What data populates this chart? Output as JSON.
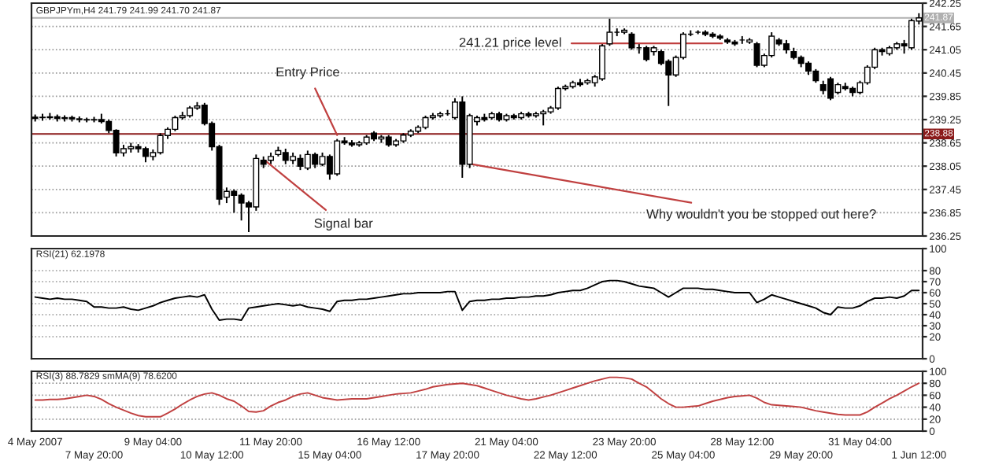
{
  "chart_data": [
    {
      "type": "candlestick",
      "title": "GBPJPYm,H4 241.79 241.99 241.70 241.87",
      "categories": [
        null,
        null,
        null,
        null,
        null,
        null,
        null,
        null,
        null,
        null,
        null,
        null,
        null,
        null,
        null,
        null,
        null,
        null,
        null,
        null,
        null,
        null,
        null,
        null,
        null,
        null,
        null,
        null,
        null,
        null,
        null,
        null,
        null,
        null,
        null,
        null,
        null,
        null,
        null,
        null,
        null,
        null,
        null,
        null,
        null,
        null,
        null,
        null,
        null,
        null,
        null,
        null,
        null,
        null,
        null,
        null,
        null,
        null,
        null,
        null,
        null,
        null,
        null,
        null,
        null,
        null,
        null,
        null,
        null,
        null,
        null,
        null,
        null,
        null,
        null,
        null,
        null,
        null,
        null,
        null,
        null,
        null,
        null,
        null,
        null,
        null,
        null,
        null,
        null,
        null,
        null,
        null,
        null,
        null,
        null,
        null,
        null,
        null,
        null,
        null,
        null,
        null,
        null,
        null,
        null,
        null,
        null,
        null,
        null,
        null,
        null,
        null,
        null,
        null,
        null,
        null,
        null,
        null,
        null,
        null,
        null
      ],
      "ohlc": [
        [
          239.28,
          239.38,
          239.2,
          239.31
        ],
        [
          239.31,
          239.4,
          239.22,
          239.3
        ],
        [
          239.3,
          239.42,
          239.25,
          239.32
        ],
        [
          239.32,
          239.38,
          239.2,
          239.28
        ],
        [
          239.28,
          239.36,
          239.2,
          239.3
        ],
        [
          239.3,
          239.35,
          239.2,
          239.27
        ],
        [
          239.27,
          239.33,
          239.18,
          239.25
        ],
        [
          239.25,
          239.3,
          239.18,
          239.24
        ],
        [
          239.24,
          239.32,
          239.18,
          239.25
        ],
        [
          239.25,
          239.4,
          239.15,
          239.2
        ],
        [
          239.2,
          239.25,
          238.9,
          238.97
        ],
        [
          238.97,
          239.0,
          238.3,
          238.39
        ],
        [
          238.39,
          238.6,
          238.3,
          238.5
        ],
        [
          238.5,
          238.65,
          238.4,
          238.55
        ],
        [
          238.55,
          238.62,
          238.4,
          238.5
        ],
        [
          238.5,
          238.55,
          238.15,
          238.3
        ],
        [
          238.3,
          238.48,
          238.2,
          238.4
        ],
        [
          238.4,
          238.9,
          238.35,
          238.84
        ],
        [
          238.84,
          239.05,
          238.75,
          239.0
        ],
        [
          239.0,
          239.35,
          238.95,
          239.3
        ],
        [
          239.3,
          239.45,
          239.25,
          239.35
        ],
        [
          239.35,
          239.6,
          239.3,
          239.55
        ],
        [
          239.55,
          239.7,
          239.5,
          239.6
        ],
        [
          239.62,
          239.68,
          239.1,
          239.15
        ],
        [
          239.15,
          239.2,
          238.45,
          238.55
        ],
        [
          238.55,
          238.6,
          237.05,
          237.2
        ],
        [
          237.25,
          237.5,
          237.1,
          237.4
        ],
        [
          237.4,
          237.45,
          236.85,
          237.3
        ],
        [
          237.3,
          237.35,
          236.65,
          237.1
        ],
        [
          237.1,
          237.15,
          236.35,
          237.0
        ],
        [
          237.0,
          238.35,
          236.9,
          238.25
        ],
        [
          238.2,
          238.3,
          238.0,
          238.1
        ],
        [
          238.2,
          238.4,
          238.1,
          238.3
        ],
        [
          238.35,
          238.55,
          238.3,
          238.45
        ],
        [
          238.4,
          238.5,
          238.1,
          238.2
        ],
        [
          238.2,
          238.4,
          238.1,
          238.3
        ],
        [
          238.25,
          238.35,
          237.95,
          238.05
        ],
        [
          238.0,
          238.45,
          237.95,
          238.35
        ],
        [
          238.35,
          238.4,
          238.0,
          238.1
        ],
        [
          238.1,
          238.4,
          238.05,
          238.3
        ],
        [
          238.3,
          238.35,
          237.7,
          237.85
        ],
        [
          237.85,
          238.75,
          237.8,
          238.7
        ],
        [
          238.7,
          238.8,
          238.6,
          238.65
        ],
        [
          238.65,
          238.72,
          238.55,
          238.6
        ],
        [
          238.6,
          238.7,
          238.55,
          238.65
        ],
        [
          238.65,
          238.85,
          238.6,
          238.8
        ],
        [
          238.9,
          238.95,
          238.7,
          238.75
        ],
        [
          238.75,
          238.85,
          238.65,
          238.8
        ],
        [
          238.8,
          238.85,
          238.55,
          238.6
        ],
        [
          238.6,
          238.75,
          238.55,
          238.7
        ],
        [
          238.7,
          238.9,
          238.65,
          238.85
        ],
        [
          238.85,
          239.0,
          238.8,
          238.95
        ],
        [
          238.95,
          239.1,
          238.9,
          239.05
        ],
        [
          239.05,
          239.35,
          239.0,
          239.3
        ],
        [
          239.3,
          239.42,
          239.25,
          239.35
        ],
        [
          239.35,
          239.45,
          239.3,
          239.4
        ],
        [
          239.4,
          239.5,
          239.35,
          239.4
        ],
        [
          239.3,
          239.8,
          239.25,
          239.7
        ],
        [
          239.7,
          239.85,
          237.75,
          238.1
        ],
        [
          238.1,
          239.4,
          238.0,
          239.35
        ],
        [
          239.2,
          239.35,
          239.1,
          239.3
        ],
        [
          239.3,
          239.4,
          239.2,
          239.25
        ],
        [
          239.3,
          239.45,
          239.25,
          239.4
        ],
        [
          239.4,
          239.45,
          239.2,
          239.25
        ],
        [
          239.25,
          239.4,
          239.2,
          239.35
        ],
        [
          239.35,
          239.4,
          239.25,
          239.3
        ],
        [
          239.3,
          239.45,
          239.25,
          239.4
        ],
        [
          239.4,
          239.45,
          239.3,
          239.35
        ],
        [
          239.35,
          239.45,
          239.3,
          239.4
        ],
        [
          239.4,
          239.5,
          239.1,
          239.45
        ],
        [
          239.45,
          239.6,
          239.4,
          239.55
        ],
        [
          239.55,
          240.1,
          239.5,
          240.05
        ],
        [
          240.05,
          240.15,
          240.0,
          240.1
        ],
        [
          240.1,
          240.25,
          240.05,
          240.2
        ],
        [
          240.2,
          240.3,
          240.1,
          240.15
        ],
        [
          240.2,
          240.3,
          240.15,
          240.25
        ],
        [
          240.2,
          240.4,
          240.1,
          240.35
        ],
        [
          240.3,
          241.2,
          240.25,
          241.15
        ],
        [
          241.2,
          241.85,
          241.15,
          241.5
        ],
        [
          241.5,
          241.6,
          241.4,
          241.5
        ],
        [
          241.5,
          241.6,
          241.45,
          241.55
        ],
        [
          241.45,
          241.5,
          241.05,
          241.1
        ],
        [
          241.1,
          241.2,
          240.95,
          241.1
        ],
        [
          241.1,
          241.15,
          240.75,
          240.8
        ],
        [
          241.0,
          241.15,
          240.9,
          241.1
        ],
        [
          241.0,
          241.05,
          240.65,
          240.7
        ],
        [
          240.75,
          240.8,
          239.6,
          240.4
        ],
        [
          240.4,
          240.9,
          240.35,
          240.85
        ],
        [
          240.85,
          241.5,
          240.8,
          241.45
        ],
        [
          241.45,
          241.55,
          241.4,
          241.45
        ],
        [
          241.5,
          241.55,
          241.45,
          241.5
        ],
        [
          241.5,
          241.55,
          241.4,
          241.45
        ],
        [
          241.45,
          241.5,
          241.35,
          241.4
        ],
        [
          241.4,
          241.45,
          241.3,
          241.35
        ],
        [
          241.3,
          241.35,
          241.2,
          241.25
        ],
        [
          241.25,
          241.3,
          241.15,
          241.2
        ],
        [
          241.3,
          241.4,
          241.2,
          241.3
        ],
        [
          241.25,
          241.35,
          241.2,
          241.3
        ],
        [
          241.2,
          241.25,
          240.6,
          240.65
        ],
        [
          240.65,
          240.95,
          240.6,
          240.9
        ],
        [
          240.9,
          241.5,
          240.85,
          241.4
        ],
        [
          241.3,
          241.35,
          241.15,
          241.2
        ],
        [
          241.2,
          241.3,
          240.95,
          241.05
        ],
        [
          241.0,
          241.1,
          240.8,
          240.85
        ],
        [
          240.85,
          240.9,
          240.6,
          240.7
        ],
        [
          240.7,
          240.75,
          240.4,
          240.5
        ],
        [
          240.5,
          240.55,
          240.2,
          240.25
        ],
        [
          240.15,
          240.25,
          239.9,
          240.0
        ],
        [
          240.3,
          240.35,
          239.75,
          239.8
        ],
        [
          239.95,
          240.2,
          239.9,
          240.15
        ],
        [
          240.1,
          240.2,
          240.0,
          240.05
        ],
        [
          240.05,
          240.1,
          239.85,
          239.95
        ],
        [
          239.95,
          240.25,
          239.9,
          240.2
        ],
        [
          240.2,
          240.65,
          240.15,
          240.6
        ],
        [
          240.6,
          241.1,
          240.55,
          241.05
        ],
        [
          241.05,
          241.1,
          240.9,
          241.0
        ],
        [
          240.95,
          241.15,
          240.9,
          241.1
        ],
        [
          241.1,
          241.25,
          241.05,
          241.2
        ],
        [
          241.2,
          241.3,
          240.95,
          241.15
        ],
        [
          241.1,
          241.85,
          241.05,
          241.8
        ],
        [
          241.79,
          241.99,
          241.7,
          241.87
        ]
      ],
      "ylim": [
        236.25,
        242.25
      ],
      "yticks": [
        236.25,
        236.85,
        237.45,
        238.05,
        238.65,
        239.25,
        239.85,
        240.45,
        241.05,
        241.65,
        242.25
      ],
      "ref_lines": [
        {
          "axis": "y",
          "value": 238.88,
          "label": "238.88",
          "color": "#8b1a1a"
        },
        {
          "axis": "y",
          "value": 241.87,
          "label": "241.87",
          "color": "#b0b0b0"
        }
      ],
      "annotations": [
        "Entry Price",
        "241.21 price level",
        "Signal bar",
        "Why wouldn't you be stopped out here?"
      ],
      "grid": true,
      "tick_labels": "y"
    },
    {
      "type": "line",
      "title": "RSI(21) 62.1978",
      "categories": [
        null,
        null,
        null,
        null,
        null,
        null,
        null,
        null,
        null,
        null,
        null,
        null,
        null,
        null,
        null,
        null,
        null,
        null,
        null,
        null,
        null,
        null,
        null,
        null,
        null,
        null,
        null,
        null,
        null,
        null,
        null,
        null,
        null,
        null,
        null,
        null,
        null,
        null,
        null,
        null,
        null,
        null,
        null,
        null,
        null,
        null,
        null,
        null,
        null,
        null,
        null,
        null,
        null,
        null,
        null,
        null,
        null,
        null,
        null,
        null,
        null,
        null,
        null,
        null,
        null,
        null,
        null,
        null,
        null,
        null,
        null,
        null,
        null,
        null,
        null,
        null,
        null,
        null,
        null,
        null,
        null,
        null,
        null,
        null,
        null,
        null,
        null,
        null,
        null,
        null,
        null,
        null,
        null,
        null,
        null,
        null,
        null,
        null,
        null,
        null,
        null,
        null,
        null,
        null,
        null,
        null,
        null,
        null,
        null,
        null,
        null,
        null,
        null,
        null,
        null,
        null,
        null,
        null,
        null,
        null,
        null
      ],
      "series": [
        {
          "color": "#000000",
          "values": [
            56,
            55,
            54,
            55,
            54,
            54,
            53,
            52,
            47,
            47,
            46,
            46,
            47,
            45,
            44,
            46,
            48,
            51,
            53,
            55,
            56,
            57,
            56,
            58,
            45,
            35,
            36,
            36,
            35,
            46,
            47,
            48,
            49,
            50,
            49,
            48,
            49,
            47,
            46,
            45,
            43,
            52,
            53,
            53,
            54,
            54,
            55,
            56,
            57,
            58,
            59,
            59,
            60,
            60,
            60,
            60,
            61,
            61,
            44,
            52,
            53,
            53,
            54,
            54,
            55,
            55,
            56,
            56,
            57,
            57,
            58,
            60,
            61,
            62,
            62,
            64,
            67,
            70,
            71,
            71,
            70,
            68,
            66,
            65,
            64,
            60,
            56,
            60,
            64,
            64,
            64,
            63,
            63,
            62,
            61,
            60,
            60,
            60,
            51,
            54,
            58,
            56,
            54,
            52,
            50,
            48,
            46,
            42,
            40,
            47,
            46,
            46,
            48,
            52,
            55,
            55,
            56,
            55,
            57,
            62,
            62
          ]
        }
      ],
      "ylim": [
        0,
        100
      ],
      "yticks": [
        0,
        20,
        30,
        40,
        50,
        60,
        70,
        80,
        100
      ],
      "grid": "y",
      "line_style": "solid",
      "tick_labels": "y"
    },
    {
      "type": "line",
      "title": "RSI(3) 88.7829 smMA(9) 78.6200",
      "categories": [
        "4 May 2007",
        null,
        null,
        null,
        null,
        null,
        null,
        null,
        "7 May 20:00",
        null,
        null,
        null,
        null,
        null,
        null,
        null,
        "9 May 04:00",
        null,
        null,
        null,
        null,
        null,
        null,
        null,
        "10 May 12:00",
        null,
        null,
        null,
        null,
        null,
        null,
        null,
        "11 May 20:00",
        null,
        null,
        null,
        null,
        null,
        null,
        null,
        "15 May 04:00",
        null,
        null,
        null,
        null,
        null,
        null,
        null,
        "16 May 12:00",
        null,
        null,
        null,
        null,
        null,
        null,
        null,
        "17 May 20:00",
        null,
        null,
        null,
        null,
        null,
        null,
        null,
        "21 May 04:00",
        null,
        null,
        null,
        null,
        null,
        null,
        null,
        "22 May 12:00",
        null,
        null,
        null,
        null,
        null,
        null,
        null,
        "23 May 20:00",
        null,
        null,
        null,
        null,
        null,
        null,
        null,
        "25 May 04:00",
        null,
        null,
        null,
        null,
        null,
        null,
        null,
        "28 May 12:00",
        null,
        null,
        null,
        null,
        null,
        null,
        null,
        "29 May 20:00",
        null,
        null,
        null,
        null,
        null,
        null,
        null,
        "31 May 04:00",
        null,
        null,
        null,
        null,
        null,
        null,
        null,
        "1 Jun 12:00"
      ],
      "series": [
        {
          "color": "#c04040",
          "values": [
            52,
            52,
            53,
            53,
            54,
            56,
            58,
            60,
            58,
            53,
            46,
            40,
            35,
            30,
            26,
            24,
            24,
            24,
            30,
            37,
            45,
            52,
            58,
            62,
            64,
            60,
            54,
            50,
            42,
            33,
            32,
            34,
            42,
            48,
            52,
            58,
            62,
            64,
            60,
            56,
            54,
            52,
            53,
            54,
            54,
            54,
            56,
            58,
            60,
            62,
            63,
            64,
            67,
            70,
            74,
            76,
            78,
            79,
            80,
            78,
            76,
            72,
            68,
            64,
            60,
            57,
            54,
            52,
            54,
            57,
            60,
            64,
            68,
            72,
            76,
            80,
            84,
            87,
            90,
            90,
            89,
            87,
            80,
            74,
            64,
            54,
            46,
            40,
            40,
            41,
            42,
            46,
            50,
            53,
            56,
            58,
            59,
            60,
            55,
            48,
            44,
            43,
            42,
            41,
            40,
            37,
            34,
            32,
            30,
            28,
            27,
            27,
            27,
            32,
            40,
            47,
            54,
            60,
            67,
            74,
            80
          ]
        }
      ],
      "ylim": [
        0,
        100
      ],
      "yticks": [
        0,
        20,
        40,
        60,
        80,
        100
      ],
      "grid": "y",
      "line_style": "solid"
    }
  ]
}
